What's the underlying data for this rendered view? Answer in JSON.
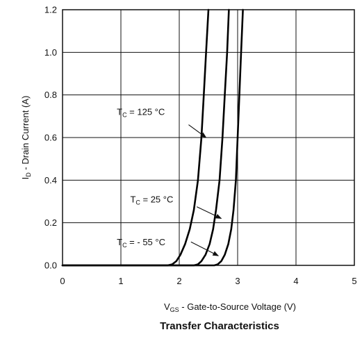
{
  "chart_data": {
    "type": "line",
    "title": "Transfer Characteristics",
    "xlabel": {
      "main": "V",
      "sub": "GS",
      "rest": " - Gate-to-Source Voltage (V)"
    },
    "ylabel": {
      "main": "I",
      "sub": "D",
      "rest": " - Drain Current (A)"
    },
    "xlim": [
      0,
      5
    ],
    "ylim": [
      0,
      1.2
    ],
    "x_ticks": [
      "0",
      "1",
      "2",
      "3",
      "4",
      "5"
    ],
    "y_ticks": [
      "0.0",
      "0.2",
      "0.4",
      "0.6",
      "0.8",
      "1.0",
      "1.2"
    ],
    "grid": true,
    "series": [
      {
        "name": {
          "main": "T",
          "sub": "C",
          "rest": " = 125 °C"
        },
        "points": [
          [
            0,
            0
          ],
          [
            1.8,
            0
          ],
          [
            1.88,
            0.005
          ],
          [
            1.95,
            0.02
          ],
          [
            2.02,
            0.05
          ],
          [
            2.1,
            0.1
          ],
          [
            2.18,
            0.17
          ],
          [
            2.25,
            0.26
          ],
          [
            2.32,
            0.4
          ],
          [
            2.38,
            0.6
          ],
          [
            2.42,
            0.8
          ],
          [
            2.46,
            1.0
          ],
          [
            2.5,
            1.2
          ]
        ]
      },
      {
        "name": {
          "main": "T",
          "sub": "C",
          "rest": " = 25 °C"
        },
        "points": [
          [
            0,
            0
          ],
          [
            2.25,
            0
          ],
          [
            2.32,
            0.005
          ],
          [
            2.38,
            0.02
          ],
          [
            2.45,
            0.05
          ],
          [
            2.52,
            0.1
          ],
          [
            2.58,
            0.17
          ],
          [
            2.63,
            0.26
          ],
          [
            2.69,
            0.4
          ],
          [
            2.74,
            0.6
          ],
          [
            2.78,
            0.8
          ],
          [
            2.82,
            1.0
          ],
          [
            2.85,
            1.2
          ]
        ]
      },
      {
        "name": {
          "main": "T",
          "sub": "C",
          "rest": " = - 55 °C"
        },
        "points": [
          [
            0,
            0
          ],
          [
            2.6,
            0
          ],
          [
            2.66,
            0.005
          ],
          [
            2.72,
            0.02
          ],
          [
            2.78,
            0.05
          ],
          [
            2.84,
            0.1
          ],
          [
            2.89,
            0.17
          ],
          [
            2.93,
            0.26
          ],
          [
            2.97,
            0.4
          ],
          [
            3.0,
            0.6
          ],
          [
            3.03,
            0.8
          ],
          [
            3.06,
            1.0
          ],
          [
            3.09,
            1.2
          ]
        ]
      }
    ],
    "annotations": [
      {
        "series": 0,
        "text_at": [
          0.93,
          0.72
        ],
        "arrow_from": [
          2.16,
          0.66
        ],
        "arrow_to": [
          2.46,
          0.6
        ]
      },
      {
        "series": 1,
        "text_at": [
          1.16,
          0.31
        ],
        "arrow_from": [
          2.3,
          0.275
        ],
        "arrow_to": [
          2.72,
          0.22
        ]
      },
      {
        "series": 2,
        "text_at": [
          0.93,
          0.11
        ],
        "arrow_from": [
          2.2,
          0.11
        ],
        "arrow_to": [
          2.67,
          0.045
        ]
      }
    ]
  }
}
